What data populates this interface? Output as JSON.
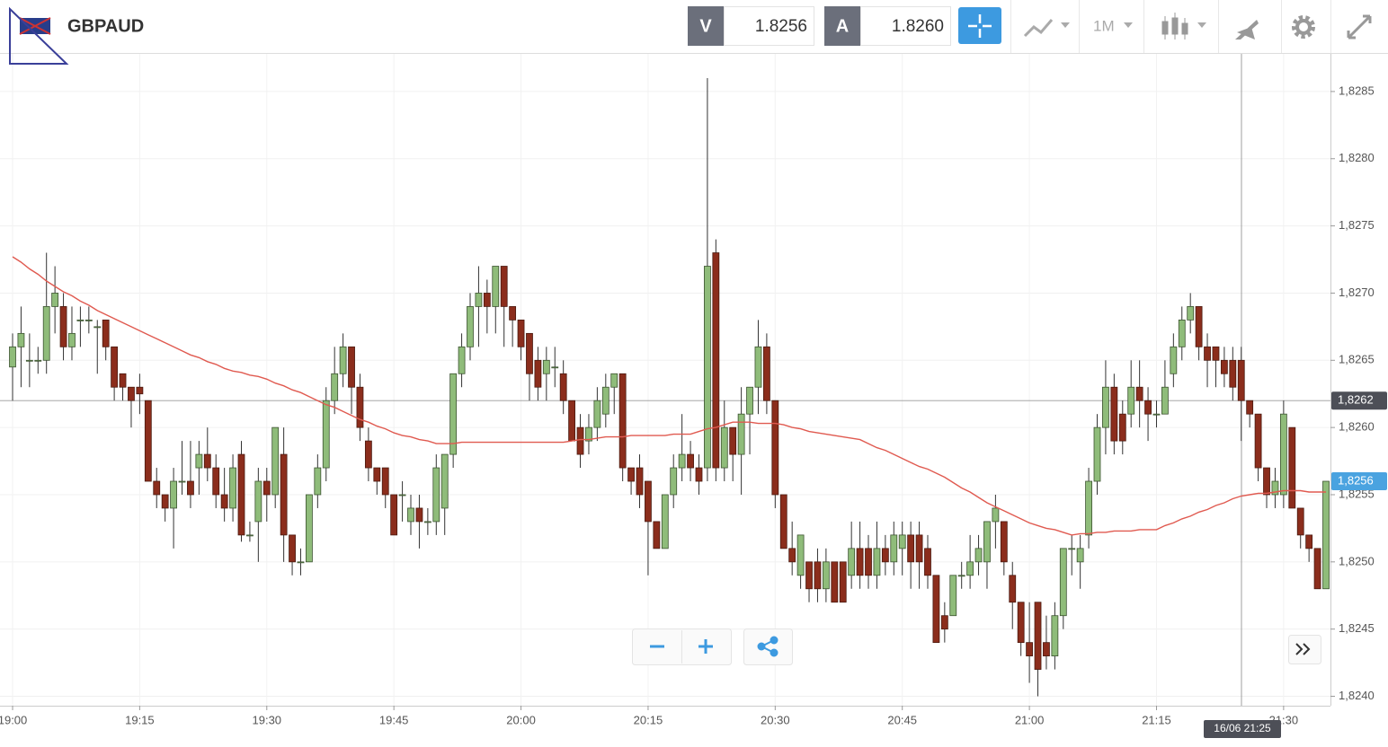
{
  "toolbar": {
    "symbol": "GBPAUD",
    "bid_label": "V",
    "bid": "1.8256",
    "ask_label": "A",
    "ask": "1.8260",
    "timeframe": "1M"
  },
  "chart_data": {
    "type": "candlestick",
    "categories": [
      "19:00",
      null,
      null,
      null,
      null,
      null,
      null,
      null,
      null,
      null,
      null,
      null,
      null,
      null,
      null,
      "19:15",
      null,
      null,
      null,
      null,
      null,
      null,
      null,
      null,
      null,
      null,
      null,
      null,
      null,
      null,
      "19:30",
      null,
      null,
      null,
      null,
      null,
      null,
      null,
      null,
      null,
      null,
      null,
      null,
      null,
      null,
      "19:45",
      null,
      null,
      null,
      null,
      null,
      null,
      null,
      null,
      null,
      null,
      null,
      null,
      null,
      null,
      "20:00",
      null,
      null,
      null,
      null,
      null,
      null,
      null,
      null,
      null,
      null,
      null,
      null,
      null,
      null,
      "20:15",
      null,
      null,
      null,
      null,
      null,
      null,
      null,
      null,
      null,
      null,
      null,
      null,
      null,
      null,
      "20:30",
      null,
      null,
      null,
      null,
      null,
      null,
      null,
      null,
      null,
      null,
      null,
      null,
      null,
      null,
      "20:45",
      null,
      null,
      null,
      null,
      null,
      null,
      null,
      null,
      null,
      null,
      null,
      null,
      null,
      null,
      "21:00",
      null,
      null,
      null,
      null,
      null,
      null,
      null,
      null,
      null,
      null,
      null,
      null,
      null,
      null,
      "21:15",
      null,
      null,
      null,
      null,
      null,
      null,
      null,
      null,
      null,
      null,
      null,
      null,
      null,
      null,
      "21:30",
      null,
      null,
      null,
      null,
      null
    ],
    "open": [
      1.82645,
      1.8266,
      1.8265,
      1.8265,
      1.8265,
      1.8269,
      1.8269,
      1.8266,
      1.8268,
      1.8268,
      1.82675,
      1.8268,
      1.8266,
      1.8264,
      1.8263,
      1.8263,
      1.8262,
      1.8256,
      1.8255,
      1.8254,
      1.8256,
      1.8256,
      1.8257,
      1.8258,
      1.8257,
      1.8255,
      1.8254,
      1.8258,
      1.8252,
      1.8253,
      1.8256,
      1.8255,
      1.8258,
      1.8252,
      1.825,
      1.825,
      1.8255,
      1.8257,
      1.8262,
      1.8264,
      1.8266,
      1.8263,
      1.8259,
      1.8257,
      1.8257,
      1.8255,
      1.8255,
      1.8253,
      1.8254,
      1.8253,
      1.8253,
      1.8254,
      1.8258,
      1.8264,
      1.8266,
      1.8269,
      1.827,
      1.8269,
      1.8272,
      1.8269,
      1.8268,
      1.8267,
      1.8265,
      1.8264,
      1.82645,
      1.8264,
      1.8262,
      1.826,
      1.8259,
      1.826,
      1.8261,
      1.8263,
      1.8264,
      1.8257,
      1.8257,
      1.8256,
      1.8253,
      1.8251,
      1.8255,
      1.8257,
      1.8258,
      1.8257,
      1.8257,
      1.8273,
      1.8257,
      1.826,
      1.8258,
      1.8261,
      1.8263,
      1.8266,
      1.8262,
      1.8255,
      1.8251,
      1.8249,
      1.825,
      1.825,
      1.8248,
      1.825,
      1.825,
      1.8249,
      1.8251,
      1.8251,
      1.8249,
      1.8251,
      1.825,
      1.8251,
      1.8252,
      1.8252,
      1.8251,
      1.8249,
      1.8246,
      1.8246,
      1.8249,
      1.8249,
      1.825,
      1.825,
      1.8253,
      1.8253,
      1.8249,
      1.8247,
      1.8244,
      1.8247,
      1.8244,
      1.8243,
      1.8246,
      1.8251,
      1.825,
      1.8252,
      1.8256,
      1.826,
      1.8263,
      1.8261,
      1.8261,
      1.8263,
      1.8262,
      1.8261,
      1.8261,
      1.8264,
      1.8266,
      1.8268,
      1.8269,
      1.8266,
      1.8266,
      1.8265,
      1.8265,
      1.8265,
      1.8262,
      1.8261,
      1.8257,
      1.8255,
      1.8255,
      1.826,
      1.8254,
      1.8252,
      1.8251,
      1.8248
    ],
    "high": [
      1.8267,
      1.8269,
      1.8267,
      1.8266,
      1.8273,
      1.8272,
      1.827,
      1.8269,
      1.8269,
      1.8269,
      1.8268,
      1.8268,
      1.8266,
      1.8264,
      1.8263,
      1.8264,
      1.8262,
      1.8257,
      1.8255,
      1.8257,
      1.8259,
      1.8259,
      1.8259,
      1.826,
      1.8258,
      1.8257,
      1.8258,
      1.8259,
      1.8253,
      1.8257,
      1.8257,
      1.826,
      1.826,
      1.8252,
      1.8251,
      1.8255,
      1.8258,
      1.8263,
      1.8266,
      1.8267,
      1.8266,
      1.8264,
      1.826,
      1.8257,
      1.8257,
      1.8255,
      1.8256,
      1.8255,
      1.8255,
      1.8254,
      1.8258,
      1.8258,
      1.8264,
      1.8267,
      1.827,
      1.8272,
      1.8271,
      1.8272,
      1.8272,
      1.8269,
      1.8268,
      1.8267,
      1.8266,
      1.8266,
      1.8266,
      1.8265,
      1.8262,
      1.8261,
      1.8261,
      1.8263,
      1.8264,
      1.8264,
      1.8264,
      1.8257,
      1.8258,
      1.8256,
      1.8253,
      1.8255,
      1.8258,
      1.8261,
      1.8259,
      1.8258,
      1.8286,
      1.8274,
      1.8262,
      1.826,
      1.8263,
      1.8263,
      1.8268,
      1.8267,
      1.8262,
      1.8255,
      1.8253,
      1.8252,
      1.825,
      1.8251,
      1.8251,
      1.825,
      1.825,
      1.8253,
      1.8253,
      1.8252,
      1.8253,
      1.8252,
      1.8253,
      1.8253,
      1.8253,
      1.8253,
      1.8252,
      1.8249,
      1.8247,
      1.8249,
      1.825,
      1.8252,
      1.8252,
      1.8253,
      1.8255,
      1.8253,
      1.825,
      1.8247,
      1.8247,
      1.8247,
      1.8246,
      1.8247,
      1.8251,
      1.8252,
      1.8252,
      1.8257,
      1.8261,
      1.8265,
      1.8264,
      1.8262,
      1.8265,
      1.8265,
      1.8263,
      1.8262,
      1.8265,
      1.8267,
      1.8269,
      1.827,
      1.8269,
      1.8267,
      1.8266,
      1.8266,
      1.8266,
      1.8266,
      1.8262,
      1.8261,
      1.8257,
      1.8257,
      1.8262,
      1.826,
      1.8254,
      1.8252,
      1.8251,
      1.8256
    ],
    "low": [
      1.8262,
      1.8263,
      1.8263,
      1.8264,
      1.8264,
      1.8267,
      1.8265,
      1.8265,
      1.8266,
      1.8267,
      1.8264,
      1.8265,
      1.8262,
      1.8262,
      1.826,
      1.8261,
      1.8256,
      1.8254,
      1.8253,
      1.8251,
      1.8255,
      1.8254,
      1.8255,
      1.8256,
      1.8254,
      1.8253,
      1.8253,
      1.82515,
      1.82515,
      1.825,
      1.8253,
      1.8254,
      1.825,
      1.8249,
      1.8249,
      1.825,
      1.8254,
      1.8256,
      1.8261,
      1.8263,
      1.8261,
      1.8259,
      1.8256,
      1.8255,
      1.8254,
      1.8252,
      1.8253,
      1.8252,
      1.8251,
      1.8252,
      1.8252,
      1.8252,
      1.8257,
      1.8263,
      1.8265,
      1.8266,
      1.8267,
      1.8267,
      1.8266,
      1.8266,
      1.8265,
      1.8262,
      1.8262,
      1.8262,
      1.8263,
      1.8261,
      1.8259,
      1.8257,
      1.8258,
      1.8259,
      1.826,
      1.8261,
      1.8256,
      1.8255,
      1.8254,
      1.8249,
      1.8251,
      1.8251,
      1.8254,
      1.8256,
      1.8256,
      1.8255,
      1.8256,
      1.8256,
      1.8256,
      1.8256,
      1.8255,
      1.8258,
      1.8261,
      1.8261,
      1.8254,
      1.8251,
      1.8249,
      1.8248,
      1.8247,
      1.8247,
      1.8247,
      1.8247,
      1.8247,
      1.8248,
      1.8248,
      1.8248,
      1.8248,
      1.8249,
      1.8249,
      1.8249,
      1.8248,
      1.8248,
      1.8248,
      1.8244,
      1.8244,
      1.8246,
      1.8248,
      1.8248,
      1.8249,
      1.8248,
      1.8251,
      1.8249,
      1.8245,
      1.8243,
      1.8241,
      1.824,
      1.8242,
      1.8242,
      1.8245,
      1.8249,
      1.8248,
      1.8251,
      1.8255,
      1.8258,
      1.8258,
      1.8258,
      1.826,
      1.826,
      1.8259,
      1.826,
      1.8261,
      1.8263,
      1.8265,
      1.8267,
      1.8265,
      1.8263,
      1.8263,
      1.8263,
      1.8262,
      1.8259,
      1.826,
      1.8256,
      1.8254,
      1.8254,
      1.8254,
      1.8254,
      1.8251,
      1.825,
      1.8248,
      1.8248
    ],
    "close": [
      1.8266,
      1.8267,
      1.8265,
      1.8265,
      1.8269,
      1.827,
      1.8266,
      1.8267,
      1.8268,
      1.8268,
      1.82675,
      1.8266,
      1.8263,
      1.8263,
      1.8262,
      1.82625,
      1.8256,
      1.8255,
      1.8254,
      1.8256,
      1.8256,
      1.8255,
      1.8258,
      1.8257,
      1.8255,
      1.8254,
      1.8257,
      1.8252,
      1.8252,
      1.8256,
      1.8255,
      1.826,
      1.8252,
      1.825,
      1.825,
      1.8255,
      1.8257,
      1.8262,
      1.8264,
      1.8266,
      1.8263,
      1.826,
      1.8257,
      1.8256,
      1.8255,
      1.8252,
      1.8255,
      1.8254,
      1.8253,
      1.8253,
      1.8257,
      1.8258,
      1.8264,
      1.8266,
      1.8269,
      1.827,
      1.8269,
      1.8272,
      1.8269,
      1.8268,
      1.8266,
      1.8264,
      1.8263,
      1.8265,
      1.82645,
      1.8262,
      1.8259,
      1.8258,
      1.826,
      1.8262,
      1.8263,
      1.8264,
      1.8257,
      1.8256,
      1.8255,
      1.8253,
      1.8251,
      1.8255,
      1.8257,
      1.8258,
      1.8257,
      1.8256,
      1.8272,
      1.8257,
      1.826,
      1.8258,
      1.8261,
      1.8263,
      1.8266,
      1.8262,
      1.8255,
      1.8251,
      1.825,
      1.8252,
      1.8248,
      1.8248,
      1.825,
      1.8247,
      1.8247,
      1.8251,
      1.8249,
      1.8249,
      1.8251,
      1.825,
      1.8252,
      1.8252,
      1.825,
      1.825,
      1.8249,
      1.8244,
      1.8245,
      1.8249,
      1.8249,
      1.825,
      1.8251,
      1.8253,
      1.8254,
      1.825,
      1.8247,
      1.8244,
      1.8243,
      1.8242,
      1.8243,
      1.8246,
      1.8251,
      1.8251,
      1.8251,
      1.8256,
      1.826,
      1.8263,
      1.8259,
      1.8259,
      1.8263,
      1.8262,
      1.8261,
      1.8261,
      1.8263,
      1.8266,
      1.8268,
      1.8269,
      1.8266,
      1.8265,
      1.8265,
      1.8264,
      1.8263,
      1.8262,
      1.8261,
      1.8257,
      1.8255,
      1.8256,
      1.8261,
      1.8254,
      1.8252,
      1.8251,
      1.8248,
      1.8256
    ],
    "up_color": "#8fbc7a",
    "down_color": "#8b2d1c",
    "series": [
      {
        "color": "#e05a50",
        "values": [
          1.82727,
          1.82723,
          1.82718,
          1.82714,
          1.82709,
          1.82705,
          1.82701,
          1.82698,
          1.82694,
          1.82691,
          1.82687,
          1.82684,
          1.82681,
          1.82678,
          1.82675,
          1.82672,
          1.82669,
          1.82666,
          1.82663,
          1.8266,
          1.82657,
          1.82654,
          1.82652,
          1.82649,
          1.82647,
          1.82644,
          1.82642,
          1.82641,
          1.82639,
          1.82638,
          1.82636,
          1.82633,
          1.82631,
          1.82628,
          1.82626,
          1.82623,
          1.8262,
          1.82617,
          1.82615,
          1.82612,
          1.82609,
          1.82606,
          1.82604,
          1.82601,
          1.82599,
          1.82596,
          1.82594,
          1.82593,
          1.82591,
          1.8259,
          1.82588,
          1.82588,
          1.82588,
          1.82589,
          1.82589,
          1.82589,
          1.82589,
          1.82589,
          1.82589,
          1.82589,
          1.82589,
          1.82589,
          1.82589,
          1.82589,
          1.82589,
          1.82589,
          1.8259,
          1.82591,
          1.82591,
          1.82592,
          1.82593,
          1.82593,
          1.82593,
          1.82594,
          1.82594,
          1.82594,
          1.82594,
          1.82594,
          1.82595,
          1.82595,
          1.82595,
          1.82597,
          1.82599,
          1.826,
          1.82602,
          1.82604,
          1.82604,
          1.82604,
          1.82603,
          1.82603,
          1.82603,
          1.82602,
          1.826,
          1.82599,
          1.82597,
          1.82596,
          1.82595,
          1.82594,
          1.82593,
          1.82592,
          1.82591,
          1.82588,
          1.82585,
          1.82583,
          1.8258,
          1.82577,
          1.82574,
          1.82571,
          1.82569,
          1.82566,
          1.82563,
          1.82559,
          1.82555,
          1.82552,
          1.82548,
          1.82544,
          1.82541,
          1.82538,
          1.82535,
          1.82532,
          1.82529,
          1.82527,
          1.82525,
          1.82524,
          1.82522,
          1.8252,
          1.82521,
          1.82521,
          1.82522,
          1.82522,
          1.82523,
          1.82523,
          1.82523,
          1.82524,
          1.82524,
          1.82524,
          1.82527,
          1.82529,
          1.82532,
          1.82534,
          1.82537,
          1.82539,
          1.82542,
          1.82544,
          1.82547,
          1.82549,
          1.8255,
          1.82551,
          1.82551,
          1.82552,
          1.82553,
          1.82553,
          1.82553,
          1.82552,
          1.82552,
          1.82552
        ]
      }
    ],
    "ylim": [
      1.82393,
      1.82878
    ],
    "yticks": [
      {
        "value": 1.824,
        "label": "1,8240"
      },
      {
        "value": 1.8245,
        "label": "1,8245"
      },
      {
        "value": 1.825,
        "label": "1,8250"
      },
      {
        "value": 1.8255,
        "label": "1,8255"
      },
      {
        "value": 1.826,
        "label": "1,8260"
      },
      {
        "value": 1.8265,
        "label": "1,8265"
      },
      {
        "value": 1.827,
        "label": "1,8270"
      },
      {
        "value": 1.8275,
        "label": "1,8275"
      },
      {
        "value": 1.828,
        "label": "1,8280"
      },
      {
        "value": 1.8285,
        "label": "1,8285"
      }
    ],
    "grid": true,
    "crosshair": {
      "value": 1.8262,
      "label": "1,8262",
      "time_label": "16/06 21:25"
    },
    "last_price": {
      "value": 1.8256,
      "label": "1,8256"
    }
  }
}
